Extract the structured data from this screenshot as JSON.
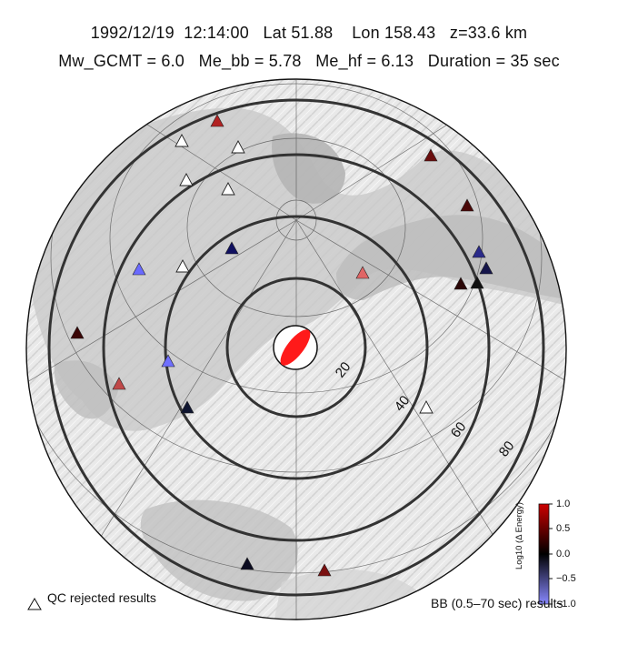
{
  "header": {
    "line1": "1992/12/19  12:14:00   Lat 51.88    Lon 158.43   z=33.6 km",
    "line2": "Mw_GCMT = 6.0   Me_bb = 5.78   Me_hf = 6.13   Duration = 35 sec"
  },
  "map": {
    "distance_rings_deg": [
      20,
      40,
      60,
      80
    ],
    "ring_labels": [
      "20",
      "40",
      "60",
      "80"
    ],
    "focal_mechanism_color": "#ff1a1a"
  },
  "legend": {
    "qc_symbol": "△",
    "qc_label": "QC rejected results",
    "bb_label": "BB (0.5–70 sec) results"
  },
  "colorbar": {
    "title": "Log10 (Δ Energy)",
    "ticks": [
      "1.0",
      "0.5",
      "0.0",
      "−0.5",
      "−1.0"
    ],
    "color_max": "#cc0000",
    "color_mid": "#000000",
    "color_min": "#8888ff"
  },
  "stations": [
    {
      "id": "st1",
      "color": "#b22222"
    },
    {
      "id": "st2",
      "color": "qc-rejected"
    },
    {
      "id": "st3",
      "color": "qc-rejected"
    },
    {
      "id": "st4",
      "color": "qc-rejected"
    },
    {
      "id": "st5",
      "color": "qc-rejected"
    },
    {
      "id": "st6",
      "color": "#6a0d0d"
    },
    {
      "id": "st7",
      "color": "#4a0808"
    },
    {
      "id": "st8",
      "color": "#101060"
    },
    {
      "id": "st9",
      "color": "#6a6aff"
    },
    {
      "id": "st10",
      "color": "qc-rejected"
    },
    {
      "id": "st11",
      "color": "#2a2a8a"
    },
    {
      "id": "st12",
      "color": "#15154a"
    },
    {
      "id": "st13",
      "color": "#e06565"
    },
    {
      "id": "st14",
      "color": "#2a0606"
    },
    {
      "id": "st15",
      "color": "#111111"
    },
    {
      "id": "st16",
      "color": "#3a0505"
    },
    {
      "id": "st17",
      "color": "#7070ff"
    },
    {
      "id": "st18",
      "color": "#c04848"
    },
    {
      "id": "st19",
      "color": "#0f1530"
    },
    {
      "id": "st20",
      "color": "qc-rejected"
    },
    {
      "id": "st21",
      "color": "#0a0a20"
    },
    {
      "id": "st22",
      "color": "#7a1010"
    }
  ]
}
